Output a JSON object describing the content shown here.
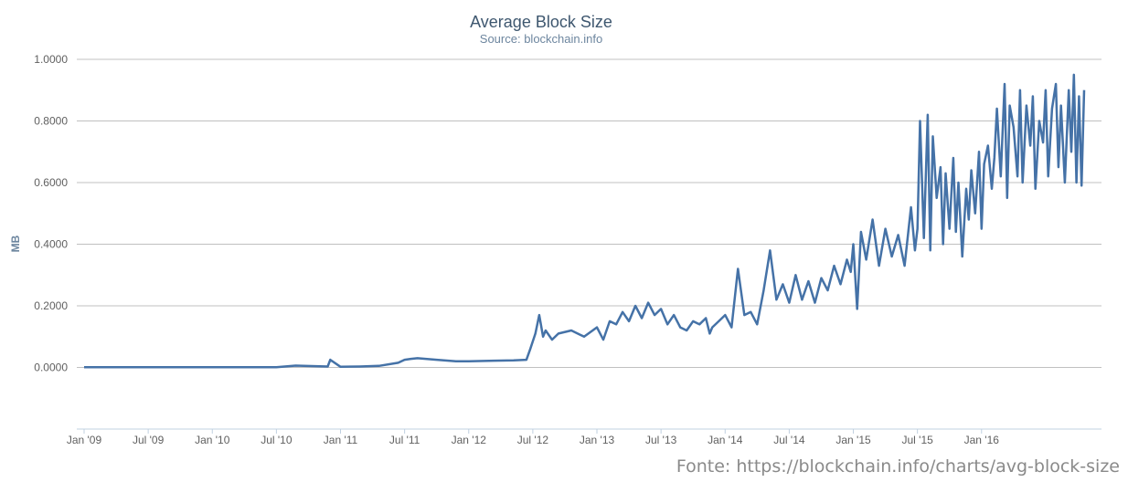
{
  "chart_data": {
    "type": "line",
    "title": "Average Block Size",
    "subtitle": "Source: blockchain.info",
    "ylabel": "MB",
    "xlabel": "",
    "ylim": [
      -0.2,
      1.0
    ],
    "yticks": [
      0.0,
      0.2,
      0.4,
      0.6,
      0.8,
      1.0
    ],
    "ytick_labels": [
      "0.0000",
      "0.2000",
      "0.4000",
      "0.6000",
      "0.8000",
      "1.0000"
    ],
    "xlim": [
      2009.0,
      2016.85
    ],
    "xticks": [
      2009.0,
      2009.5,
      2010.0,
      2010.5,
      2011.0,
      2011.5,
      2012.0,
      2012.5,
      2013.0,
      2013.5,
      2014.0,
      2014.5,
      2015.0,
      2015.5,
      2016.0
    ],
    "xtick_labels": [
      "Jan '09",
      "Jul '09",
      "Jan '10",
      "Jul '10",
      "Jan '11",
      "Jul '11",
      "Jan '12",
      "Jul '12",
      "Jan '13",
      "Jul '13",
      "Jan '14",
      "Jul '14",
      "Jan '15",
      "Jul '15",
      "Jan '16"
    ],
    "grid": true,
    "legend": "none",
    "series": [
      {
        "name": "Average Block Size",
        "color": "#4572a7",
        "x": [
          2009.0,
          2009.5,
          2010.0,
          2010.5,
          2010.65,
          2010.9,
          2010.92,
          2011.0,
          2011.15,
          2011.3,
          2011.45,
          2011.5,
          2011.55,
          2011.6,
          2011.75,
          2011.9,
          2012.0,
          2012.2,
          2012.35,
          2012.45,
          2012.48,
          2012.52,
          2012.55,
          2012.58,
          2012.6,
          2012.65,
          2012.7,
          2012.8,
          2012.9,
          2013.0,
          2013.05,
          2013.1,
          2013.15,
          2013.2,
          2013.25,
          2013.3,
          2013.35,
          2013.4,
          2013.45,
          2013.5,
          2013.55,
          2013.6,
          2013.65,
          2013.7,
          2013.75,
          2013.8,
          2013.85,
          2013.88,
          2013.9,
          2013.95,
          2014.0,
          2014.05,
          2014.1,
          2014.15,
          2014.2,
          2014.25,
          2014.3,
          2014.35,
          2014.4,
          2014.45,
          2014.5,
          2014.55,
          2014.6,
          2014.65,
          2014.7,
          2014.75,
          2014.8,
          2014.85,
          2014.9,
          2014.95,
          2014.98,
          2015.0,
          2015.03,
          2015.06,
          2015.1,
          2015.15,
          2015.2,
          2015.25,
          2015.3,
          2015.35,
          2015.4,
          2015.45,
          2015.48,
          2015.5,
          2015.52,
          2015.55,
          2015.58,
          2015.6,
          2015.62,
          2015.65,
          2015.68,
          2015.7,
          2015.72,
          2015.75,
          2015.78,
          2015.8,
          2015.82,
          2015.85,
          2015.88,
          2015.9,
          2015.92,
          2015.95,
          2015.98,
          2016.0,
          2016.02,
          2016.05,
          2016.08,
          2016.1,
          2016.12,
          2016.15,
          2016.18,
          2016.2,
          2016.22,
          2016.25,
          2016.28,
          2016.3,
          2016.32,
          2016.35,
          2016.38,
          2016.4,
          2016.42,
          2016.45,
          2016.48,
          2016.5,
          2016.52,
          2016.55,
          2016.58,
          2016.6,
          2016.62,
          2016.65,
          2016.68,
          2016.7,
          2016.72,
          2016.74,
          2016.76,
          2016.78,
          2016.8
        ],
        "values": [
          0.0005,
          0.0006,
          0.0008,
          0.001,
          0.006,
          0.003,
          0.025,
          0.002,
          0.003,
          0.005,
          0.015,
          0.025,
          0.028,
          0.03,
          0.025,
          0.02,
          0.02,
          0.022,
          0.023,
          0.025,
          0.06,
          0.11,
          0.17,
          0.1,
          0.12,
          0.09,
          0.11,
          0.12,
          0.1,
          0.13,
          0.09,
          0.15,
          0.14,
          0.18,
          0.15,
          0.2,
          0.16,
          0.21,
          0.17,
          0.19,
          0.14,
          0.17,
          0.13,
          0.12,
          0.15,
          0.14,
          0.16,
          0.11,
          0.13,
          0.15,
          0.17,
          0.13,
          0.32,
          0.17,
          0.18,
          0.14,
          0.25,
          0.38,
          0.22,
          0.27,
          0.21,
          0.3,
          0.22,
          0.28,
          0.21,
          0.29,
          0.25,
          0.33,
          0.27,
          0.35,
          0.31,
          0.4,
          0.19,
          0.44,
          0.35,
          0.48,
          0.33,
          0.45,
          0.36,
          0.43,
          0.33,
          0.52,
          0.38,
          0.45,
          0.8,
          0.42,
          0.82,
          0.38,
          0.75,
          0.55,
          0.65,
          0.4,
          0.63,
          0.45,
          0.68,
          0.44,
          0.6,
          0.36,
          0.58,
          0.48,
          0.64,
          0.5,
          0.7,
          0.45,
          0.66,
          0.72,
          0.58,
          0.68,
          0.84,
          0.62,
          0.92,
          0.55,
          0.85,
          0.78,
          0.62,
          0.9,
          0.6,
          0.85,
          0.72,
          0.88,
          0.58,
          0.8,
          0.73,
          0.9,
          0.62,
          0.84,
          0.92,
          0.65,
          0.85,
          0.6,
          0.9,
          0.7,
          0.95,
          0.6,
          0.88,
          0.59,
          0.9
        ]
      }
    ]
  },
  "footer": {
    "text": "Fonte: https://blockchain.info/charts/avg-block-size"
  }
}
